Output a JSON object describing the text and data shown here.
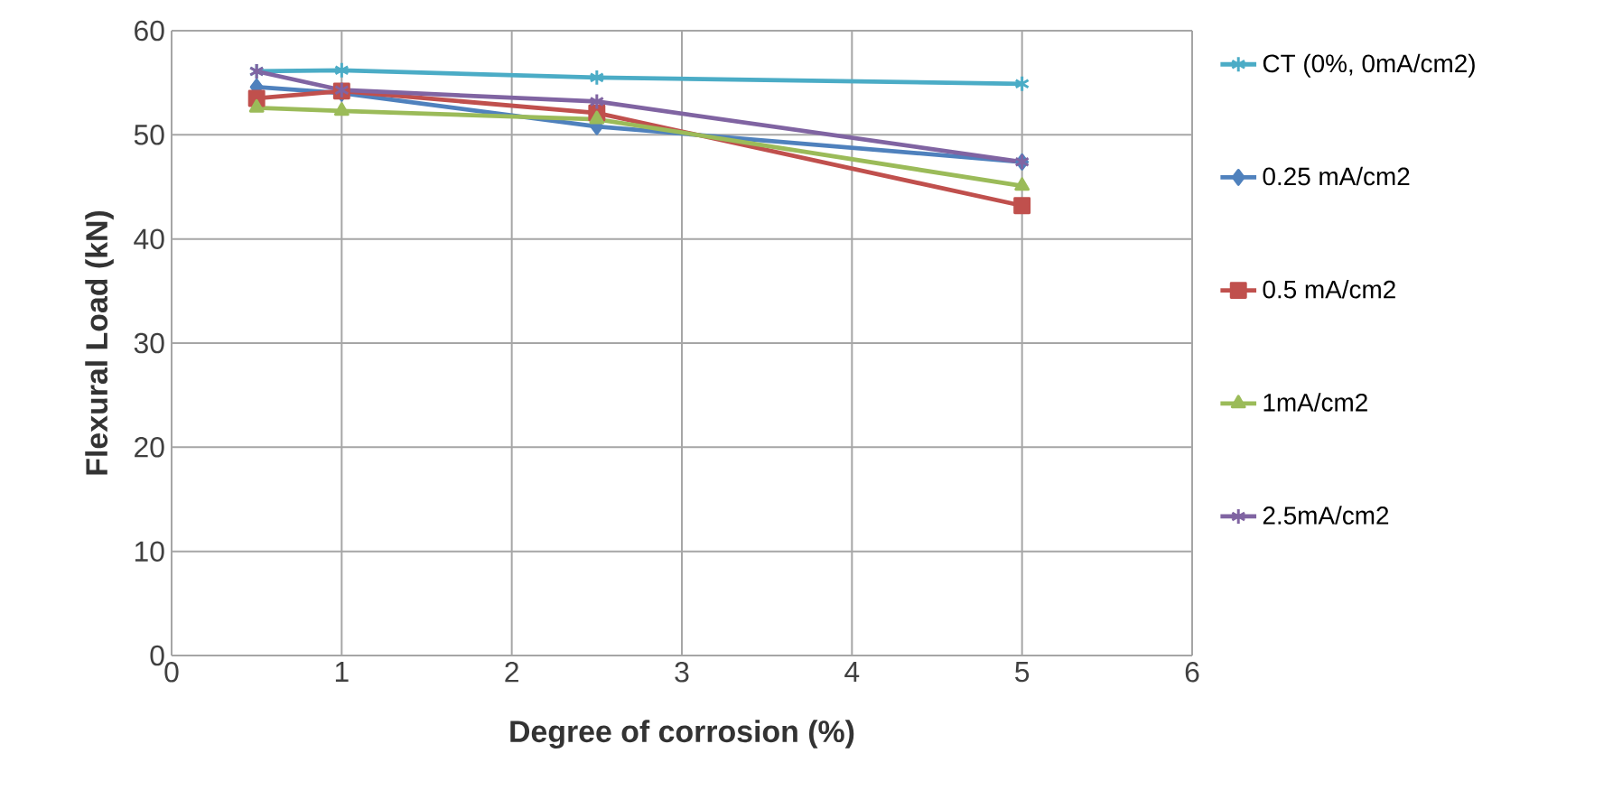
{
  "chart_data": {
    "type": "line",
    "xlabel": "Degree of corrosion (%)",
    "ylabel": "Flexural Load (kN)",
    "x": [
      0.5,
      1,
      2.5,
      5
    ],
    "series": [
      {
        "name": "CT (0%, 0mA/cm2)",
        "color": "#4bacc6",
        "marker": "cross",
        "values": [
          56.1,
          56.2,
          55.5,
          54.9
        ]
      },
      {
        "name": "0.25 mA/cm2",
        "color": "#4f81bd",
        "marker": "diamond",
        "values": [
          54.6,
          54.0,
          50.8,
          47.4
        ]
      },
      {
        "name": "0.5 mA/cm2",
        "color": "#c0504d",
        "marker": "square",
        "values": [
          53.5,
          54.2,
          52.1,
          43.2
        ]
      },
      {
        "name": "1mA/cm2",
        "color": "#9bbb59",
        "marker": "triangle",
        "values": [
          52.6,
          52.3,
          51.5,
          45.1
        ]
      },
      {
        "name": "2.5mA/cm2",
        "color": "#8064a2",
        "marker": "cross",
        "values": [
          56.1,
          54.3,
          53.2,
          47.4
        ]
      }
    ],
    "xlim": [
      0,
      6
    ],
    "xticks": [
      0,
      1,
      2,
      3,
      4,
      5,
      6
    ],
    "ylim": [
      0,
      60
    ],
    "yticks": [
      0,
      10,
      20,
      30,
      40,
      50,
      60
    ],
    "grid": true,
    "legend": "right"
  }
}
